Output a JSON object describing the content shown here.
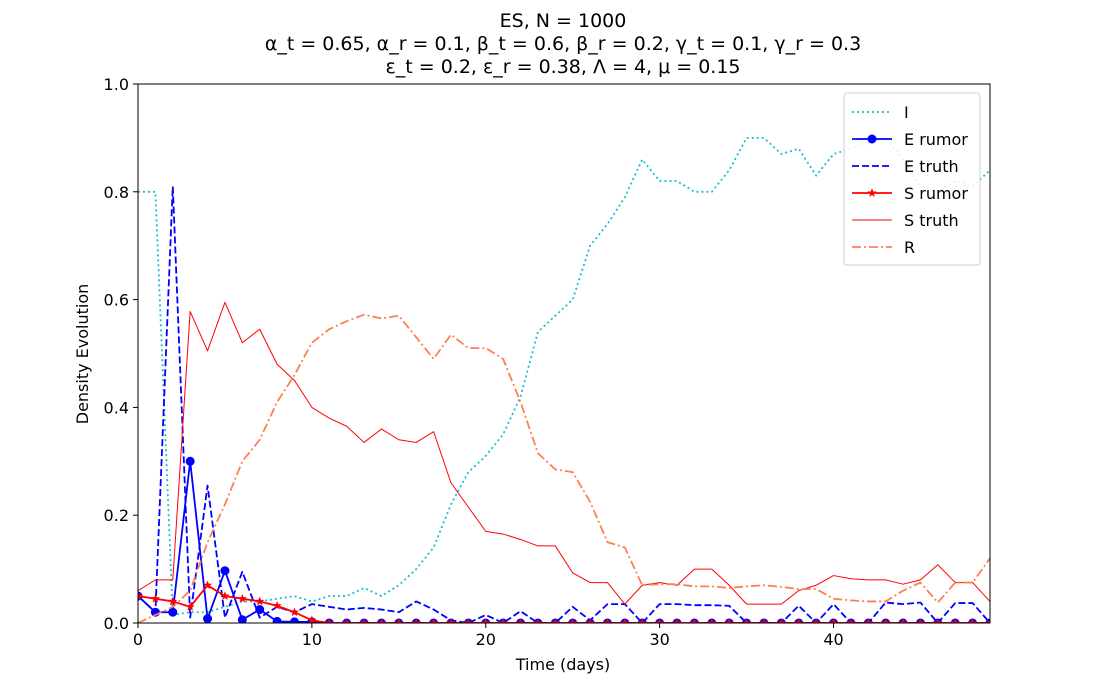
{
  "chart_data": {
    "type": "line",
    "title": {
      "line1": "ES, N = 1000",
      "line2": "α_t = 0.65, α_r = 0.1, β_t = 0.6, β_r = 0.2, γ_t = 0.1, γ_r = 0.3",
      "line3": "ε_t = 0.2, ε_r = 0.38, Λ = 4, μ = 0.15"
    },
    "xlabel": "Time (days)",
    "ylabel": "Density Evolution",
    "xlim": [
      0,
      49
    ],
    "ylim": [
      0,
      1.0
    ],
    "xticks": [
      0,
      10,
      20,
      30,
      40
    ],
    "xtick_labels": [
      "0",
      "10",
      "20",
      "30",
      "40"
    ],
    "yticks": [
      0,
      0.2,
      0.4,
      0.6,
      0.8,
      1.0
    ],
    "ytick_labels": [
      "0.0",
      "0.2",
      "0.4",
      "0.6",
      "0.8",
      "1.0"
    ],
    "grid": false,
    "legend_position": "top-right",
    "x": [
      0,
      1,
      2,
      3,
      4,
      5,
      6,
      7,
      8,
      9,
      10,
      11,
      12,
      13,
      14,
      15,
      16,
      17,
      18,
      19,
      20,
      21,
      22,
      23,
      24,
      25,
      26,
      27,
      28,
      29,
      30,
      31,
      32,
      33,
      34,
      35,
      36,
      37,
      38,
      39,
      40,
      41,
      42,
      43,
      44,
      45,
      46,
      47,
      48,
      49
    ],
    "series": [
      {
        "name": "I",
        "color": "#17becf",
        "style": "dotted",
        "marker": "none",
        "values": [
          0.8,
          0.8,
          0.015,
          0.02,
          0.02,
          0.03,
          0.04,
          0.04,
          0.045,
          0.05,
          0.04,
          0.05,
          0.05,
          0.065,
          0.05,
          0.07,
          0.1,
          0.14,
          0.22,
          0.28,
          0.31,
          0.35,
          0.42,
          0.54,
          0.57,
          0.6,
          0.7,
          0.74,
          0.79,
          0.86,
          0.82,
          0.82,
          0.8,
          0.8,
          0.84,
          0.9,
          0.9,
          0.87,
          0.88,
          0.83,
          0.87,
          0.88,
          0.89,
          0.9,
          0.86,
          0.81,
          0.8,
          0.82,
          0.81,
          0.84
        ]
      },
      {
        "name": "E rumor",
        "color": "#0000ff",
        "style": "solid",
        "marker": "circle",
        "values": [
          0.05,
          0.02,
          0.02,
          0.3,
          0.008,
          0.097,
          0.006,
          0.025,
          0.003,
          0.002,
          0.002,
          0,
          0,
          0,
          0,
          0,
          0,
          0,
          0,
          0,
          0,
          0,
          0,
          0,
          0,
          0,
          0,
          0,
          0,
          0,
          0,
          0,
          0,
          0,
          0,
          0,
          0,
          0,
          0,
          0,
          0,
          0,
          0,
          0,
          0,
          0,
          0,
          0,
          0,
          0
        ]
      },
      {
        "name": "E truth",
        "color": "#0000ff",
        "style": "dashed",
        "marker": "none",
        "values": [
          0.05,
          0.02,
          0.81,
          0.01,
          0.255,
          0.01,
          0.095,
          0.01,
          0.03,
          0.02,
          0.035,
          0.03,
          0.025,
          0.028,
          0.025,
          0.02,
          0.04,
          0.025,
          0.005,
          0.0,
          0.015,
          0.0,
          0.022,
          0.0,
          0.0,
          0.03,
          0.005,
          0.035,
          0.035,
          0.0,
          0.035,
          0.035,
          0.033,
          0.033,
          0.032,
          0.0,
          0.0,
          0.0,
          0.032,
          0.0,
          0.035,
          0.0,
          0.0,
          0.038,
          0.035,
          0.038,
          0.0,
          0.037,
          0.037,
          0.0
        ]
      },
      {
        "name": "S rumor",
        "color": "#ff0000",
        "style": "solid",
        "marker": "star",
        "values": [
          0.05,
          0.045,
          0.04,
          0.03,
          0.07,
          0.05,
          0.045,
          0.04,
          0.032,
          0.02,
          0.005,
          0,
          0,
          0,
          0,
          0,
          0,
          0,
          0,
          0,
          0,
          0,
          0,
          0,
          0,
          0,
          0,
          0,
          0,
          0,
          0,
          0,
          0,
          0,
          0,
          0,
          0,
          0,
          0,
          0,
          0,
          0,
          0,
          0,
          0,
          0,
          0,
          0,
          0,
          0
        ]
      },
      {
        "name": "S truth",
        "color": "#ff0000",
        "style": "solid",
        "marker": "none",
        "values": [
          0.06,
          0.08,
          0.08,
          0.578,
          0.505,
          0.595,
          0.52,
          0.545,
          0.48,
          0.45,
          0.4,
          0.38,
          0.365,
          0.335,
          0.36,
          0.34,
          0.335,
          0.355,
          0.26,
          0.215,
          0.17,
          0.165,
          0.155,
          0.143,
          0.143,
          0.093,
          0.075,
          0.075,
          0.035,
          0.07,
          0.075,
          0.07,
          0.1,
          0.1,
          0.07,
          0.035,
          0.035,
          0.035,
          0.06,
          0.07,
          0.088,
          0.082,
          0.08,
          0.08,
          0.072,
          0.08,
          0.108,
          0.075,
          0.075,
          0.04
        ]
      },
      {
        "name": "R",
        "color": "#ff7f50",
        "style": "dashdot",
        "marker": "none",
        "values": [
          0.0,
          0.015,
          0.03,
          0.06,
          0.15,
          0.22,
          0.3,
          0.34,
          0.41,
          0.46,
          0.52,
          0.545,
          0.56,
          0.572,
          0.565,
          0.57,
          0.53,
          0.49,
          0.535,
          0.51,
          0.51,
          0.49,
          0.41,
          0.315,
          0.285,
          0.28,
          0.225,
          0.15,
          0.14,
          0.07,
          0.072,
          0.072,
          0.068,
          0.068,
          0.065,
          0.068,
          0.07,
          0.067,
          0.063,
          0.063,
          0.045,
          0.042,
          0.04,
          0.04,
          0.06,
          0.075,
          0.038,
          0.075,
          0.075,
          0.12
        ]
      }
    ]
  }
}
